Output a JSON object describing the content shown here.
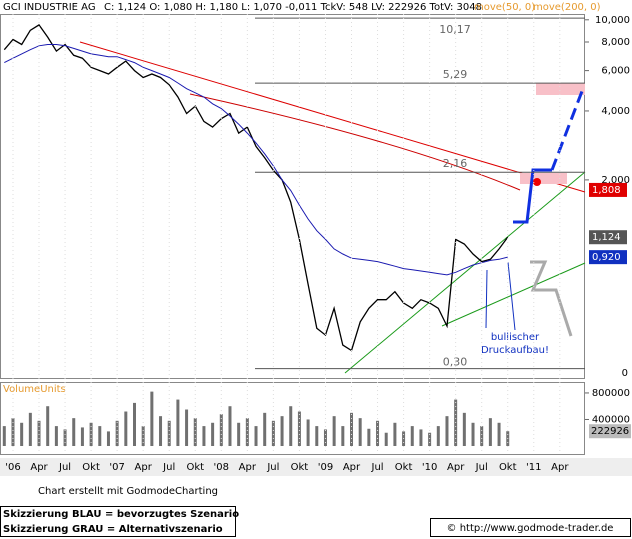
{
  "chart_data": {
    "type": "line",
    "title": "GCI INDUSTRIE AG",
    "quote": "C: 1,124 O: 1,080 H: 1,180 L: 1,070 -0,011 TckV: 548 LV: 222926 TotV: 3048",
    "extra_indicator": "move(200, 0)",
    "log_scale": true,
    "categories": [
      null,
      "'06",
      null,
      null,
      "Apr",
      null,
      null,
      "Jul",
      null,
      null,
      "Okt",
      null,
      null,
      "'07",
      null,
      null,
      "Apr",
      null,
      null,
      "Jul",
      null,
      null,
      "Okt",
      null,
      null,
      "'08",
      null,
      null,
      "Apr",
      null,
      null,
      "Jul",
      null,
      null,
      "Okt",
      null,
      null,
      "'09",
      null,
      null,
      "Apr",
      null,
      null,
      "Jul",
      null,
      null,
      "Okt",
      null,
      null,
      "'10",
      null,
      null,
      "Apr",
      null,
      null,
      "Jul",
      null,
      null,
      "Okt",
      null,
      null,
      "'11",
      null,
      null,
      "Apr",
      null,
      null
    ],
    "series": [
      {
        "name": "GCI INDUSTRIE AG",
        "color": "#000000",
        "values": [
          7.4,
          8.2,
          7.8,
          9.0,
          9.5,
          8.4,
          7.3,
          7.8,
          7.0,
          6.8,
          6.2,
          6.0,
          5.8,
          6.2,
          6.6,
          6.0,
          5.6,
          5.8,
          5.6,
          5.2,
          4.6,
          3.9,
          4.2,
          3.6,
          3.4,
          3.7,
          3.9,
          3.2,
          3.4,
          2.8,
          2.5,
          2.2,
          2.0,
          1.6,
          1.1,
          0.7,
          0.45,
          0.42,
          0.55,
          0.38,
          0.36,
          0.48,
          0.55,
          0.6,
          0.6,
          0.65,
          0.58,
          0.55,
          0.6,
          0.58,
          0.55,
          0.46,
          1.1,
          1.05,
          0.95,
          0.88,
          0.9,
          1.0,
          1.124,
          null,
          null,
          null,
          null,
          null,
          null,
          null,
          null
        ]
      },
      {
        "name": "move(50, 0)",
        "color": "#1a1ab0",
        "values": [
          6.5,
          6.8,
          7.1,
          7.4,
          7.7,
          7.8,
          7.8,
          7.7,
          7.5,
          7.3,
          7.1,
          7.0,
          6.9,
          6.9,
          6.7,
          6.5,
          6.2,
          6.0,
          5.8,
          5.6,
          5.3,
          5.0,
          4.8,
          4.6,
          4.3,
          4.1,
          3.8,
          3.5,
          3.2,
          2.9,
          2.6,
          2.3,
          2.0,
          1.8,
          1.55,
          1.35,
          1.2,
          1.1,
          1.0,
          0.95,
          0.91,
          0.9,
          0.89,
          0.88,
          0.86,
          0.84,
          0.82,
          0.81,
          0.8,
          0.79,
          0.78,
          0.77,
          0.79,
          0.82,
          0.85,
          0.87,
          0.89,
          0.9,
          0.92,
          null,
          null,
          null,
          null,
          null,
          null,
          null,
          null
        ]
      }
    ],
    "ylim": [
      0.273,
      10.6
    ],
    "yticks": [
      {
        "value": 10,
        "label": "10,000"
      },
      {
        "value": 8,
        "label": "8,000"
      },
      {
        "value": 6,
        "label": "6,000"
      },
      {
        "value": 4,
        "label": "4,000"
      },
      {
        "value": 2,
        "label": "2,000"
      }
    ],
    "y_floor_label": "0",
    "price_labels": [
      {
        "value": 1.808,
        "label": "1,808",
        "color": "#e00000"
      },
      {
        "value": 1.124,
        "label": "1,124",
        "color": "#555555"
      },
      {
        "value": 0.92,
        "label": "0,920",
        "color": "#1030c0"
      }
    ],
    "levels": [
      {
        "value": 10.17,
        "label": "10,17"
      },
      {
        "value": 5.29,
        "label": "5,29"
      },
      {
        "value": 2.16,
        "label": "2,16"
      },
      {
        "value": 0.3,
        "label": "0,30"
      }
    ],
    "annotation": "bullischer Druckaufbau!",
    "volume": {
      "label": "VolumeUnits",
      "color": "#707070",
      "values": [
        300000,
        420000,
        350000,
        500000,
        380000,
        600000,
        300000,
        250000,
        420000,
        280000,
        350000,
        300000,
        220000,
        380000,
        520000,
        650000,
        300000,
        820000,
        450000,
        380000,
        700000,
        550000,
        420000,
        300000,
        350000,
        480000,
        600000,
        350000,
        420000,
        300000,
        500000,
        380000,
        450000,
        600000,
        520000,
        400000,
        300000,
        250000,
        450000,
        300000,
        500000,
        420000,
        260000,
        380000,
        200000,
        350000,
        220000,
        300000,
        250000,
        200000,
        300000,
        450000,
        700000,
        500000,
        350000,
        300000,
        420000,
        350000,
        222926,
        null,
        null,
        null,
        null,
        null,
        null,
        null,
        null
      ],
      "ylim": [
        0,
        950000
      ],
      "yticks": [
        800000,
        400000
      ],
      "last": 222926
    },
    "credit": "Chart erstellt mit GodmodeCharting",
    "notes": [
      "Skizzierung BLAU = bevorzugtes Szenario",
      "Skizzierung GRAU = Alternativszenario"
    ],
    "source": "© http://www.godmode-trader.de"
  }
}
